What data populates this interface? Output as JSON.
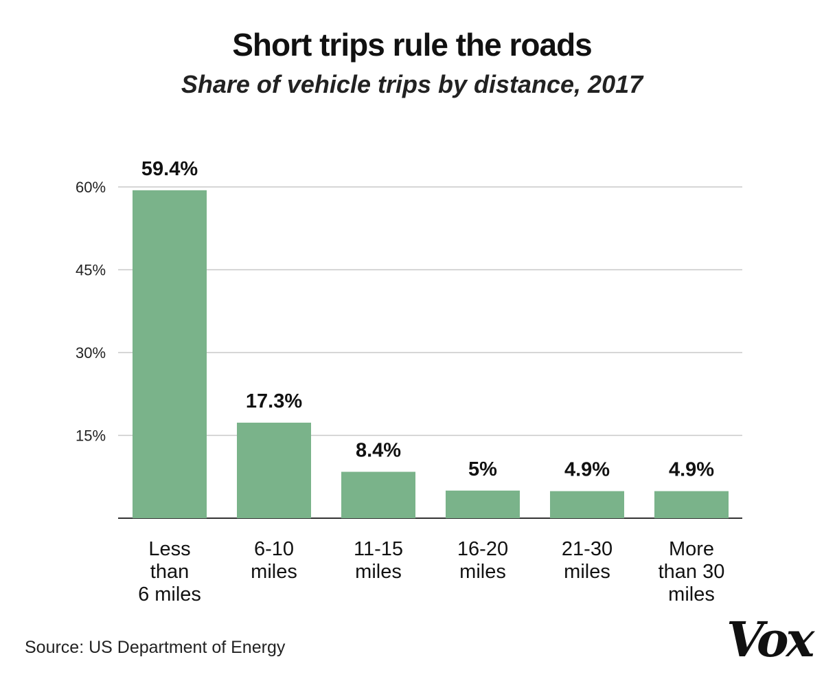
{
  "chart_data": {
    "type": "bar",
    "title": "Short trips rule the roads",
    "subtitle": "Share of vehicle trips by distance, 2017",
    "categories": [
      [
        "Less",
        "than",
        "6 miles"
      ],
      [
        "6-10",
        "miles"
      ],
      [
        "11-15",
        "miles"
      ],
      [
        "16-20",
        "miles"
      ],
      [
        "21-30",
        "miles"
      ],
      [
        "More",
        "than 30",
        "miles"
      ]
    ],
    "values": [
      59.4,
      17.3,
      8.4,
      5,
      4.9,
      4.9
    ],
    "value_labels": [
      "59.4%",
      "17.3%",
      "8.4%",
      "5%",
      "4.9%",
      "4.9%"
    ],
    "yticks": [
      15,
      30,
      45,
      60
    ],
    "ytick_labels": [
      "15%",
      "30%",
      "45%",
      "60%"
    ],
    "ylim": [
      0,
      60
    ],
    "grid": true,
    "bar_color": "#7ab38a",
    "grid_color": "#c8c8c8",
    "axis_color": "#333333"
  },
  "source": "Source: US Department of Energy",
  "logo": "Vox"
}
